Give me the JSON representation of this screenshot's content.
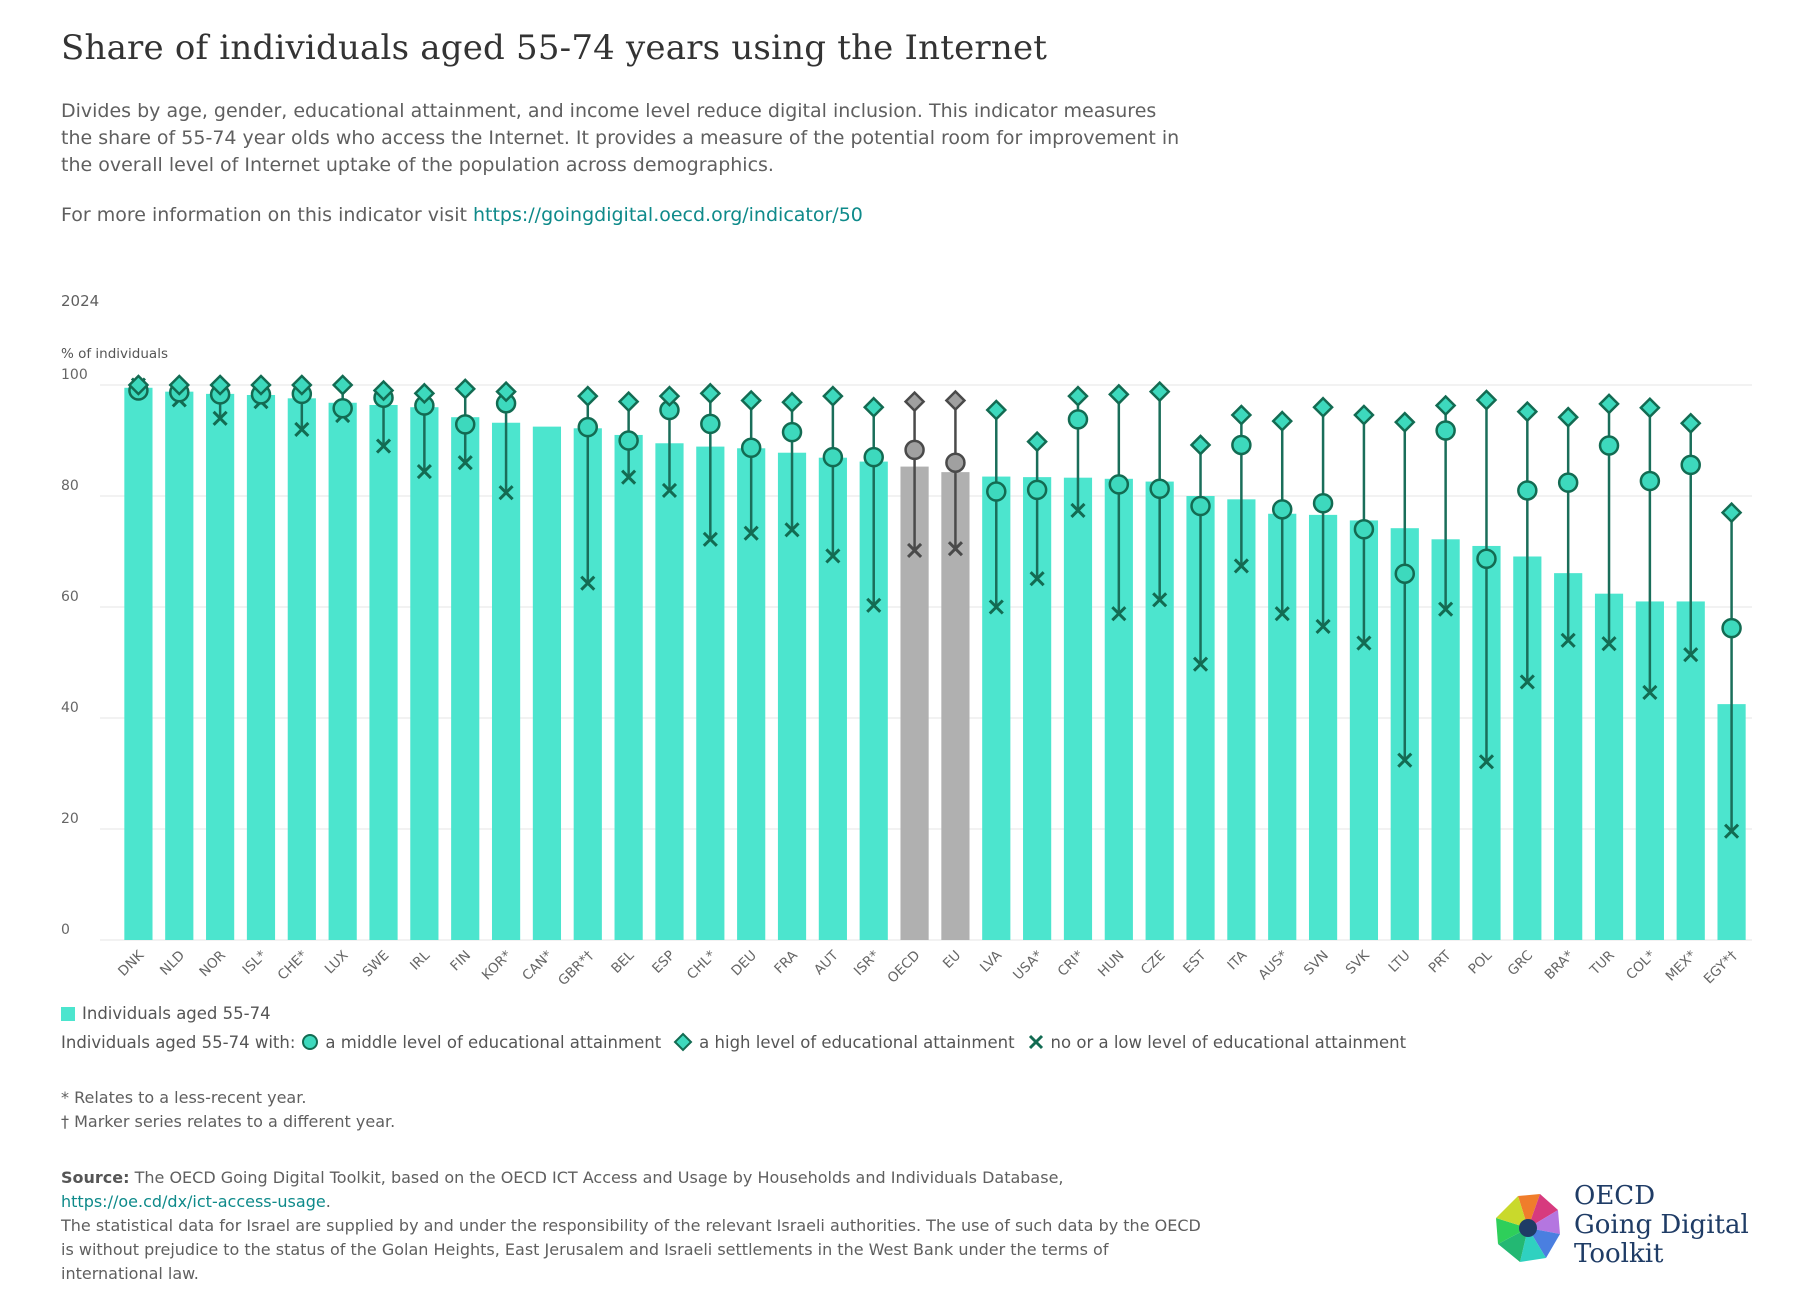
{
  "title": "Share of individuals aged 55-74 years using the Internet",
  "description": "Divides by age, gender, educational attainment, and income level reduce digital inclusion. This indicator measures the share of 55-74 year olds who access the Internet. It provides a measure of the potential room for improvement in the overall level of Internet uptake of the population across demographics.",
  "info_prefix": "For more information on this indicator visit ",
  "info_link": "https://goingdigital.oecd.org/indicator/50",
  "year": "2024",
  "legend": {
    "bar_label": "Individuals aged 55-74",
    "markers_prefix": "Individuals aged 55-74 with:",
    "middle_label": "a middle level of educational attainment",
    "high_label": "a high level of educational attainment",
    "low_label": "no or a low level of educational attainment"
  },
  "notes": {
    "star": "* Relates to a less-recent year.",
    "dagger": "† Marker series relates to a different year."
  },
  "source": {
    "label": "Source:",
    "text": " The OECD Going Digital Toolkit, based on the OECD ICT Access and Usage by Households and Individuals Database,",
    "link": "https://oe.cd/dx/ict-access-usage",
    "link_suffix": ".",
    "disclaimer": "The statistical data for Israel are supplied by and under the responsibility of the relevant Israeli authorities. The use of such data by the OECD is without prejudice to the status of the Golan Heights, East Jerusalem and Israeli settlements in the West Bank under the terms of international law."
  },
  "logo": {
    "line1": "OECD",
    "line2": "Going Digital",
    "line3": "Toolkit"
  },
  "colors": {
    "bar": "#4ce5ce",
    "bar_aggregate": "#b0b0b0",
    "marker_line": "#1a6e5a",
    "marker_fill": "#3dd9bd",
    "marker_stroke": "#136b52",
    "aggregate_marker_fill": "#a0a0a0",
    "aggregate_marker_stroke": "#4a4a4a",
    "grid": "#e6e6e6",
    "axis_text": "#666666"
  },
  "chart_data": {
    "type": "bar",
    "ylabel": "% of individuals",
    "ylim": [
      0,
      100
    ],
    "yticks": [
      0,
      20,
      40,
      60,
      80,
      100
    ],
    "categories": [
      "DNK",
      "NLD",
      "NOR",
      "ISL*",
      "CHE*",
      "LUX",
      "SWE",
      "IRL",
      "FIN",
      "KOR*",
      "CAN*",
      "GBR*†",
      "BEL",
      "ESP",
      "CHL*",
      "DEU",
      "FRA",
      "AUT",
      "ISR*",
      "OECD",
      "EU",
      "LVA",
      "USA*",
      "CRI*",
      "HUN",
      "CZE",
      "EST",
      "ITA",
      "AUS*",
      "SVN",
      "SVK",
      "LTU",
      "PRT",
      "POL",
      "GRC",
      "BRA*",
      "TUR",
      "COL*",
      "MEX*",
      "EGY*†"
    ],
    "aggregates": [
      "OECD",
      "EU"
    ],
    "series": [
      {
        "name": "Individuals aged 55-74",
        "kind": "bar",
        "values": [
          99.5,
          98.8,
          98.4,
          98.2,
          97.6,
          96.8,
          96.4,
          96.0,
          94.2,
          93.2,
          92.5,
          92.2,
          91.0,
          89.5,
          88.9,
          88.6,
          87.8,
          86.9,
          86.2,
          85.3,
          84.3,
          83.5,
          83.4,
          83.3,
          83.1,
          82.6,
          80.0,
          79.4,
          76.8,
          76.6,
          75.6,
          74.2,
          72.2,
          71.0,
          69.1,
          66.1,
          62.4,
          61.0,
          61.0,
          42.5
        ]
      },
      {
        "name": "a middle level of educational attainment",
        "kind": "circle",
        "values": [
          99.0,
          98.7,
          98.3,
          98.3,
          98.4,
          95.8,
          97.7,
          96.3,
          92.9,
          96.7,
          null,
          92.4,
          90.0,
          95.5,
          93.0,
          88.7,
          91.5,
          87.0,
          87.0,
          88.3,
          86.0,
          80.8,
          81.1,
          93.8,
          82.1,
          81.3,
          78.2,
          89.2,
          77.6,
          78.7,
          74.0,
          66.0,
          91.8,
          68.7,
          81.0,
          82.4,
          89.1,
          82.7,
          85.6,
          56.2
        ]
      },
      {
        "name": "a high level of educational attainment",
        "kind": "diamond",
        "values": [
          100.0,
          100.0,
          100.0,
          100.0,
          100.0,
          100.0,
          99.0,
          98.5,
          99.3,
          98.8,
          null,
          98.0,
          97.0,
          98.0,
          98.5,
          97.2,
          96.9,
          98.0,
          96.0,
          97.0,
          97.2,
          95.5,
          89.8,
          98.0,
          98.3,
          98.8,
          89.2,
          94.6,
          93.5,
          96.0,
          94.6,
          93.3,
          96.3,
          97.3,
          95.2,
          94.2,
          96.6,
          95.9,
          93.1,
          77.0
        ]
      },
      {
        "name": "no or a low level of educational attainment",
        "kind": "cross",
        "values": [
          100.0,
          97.3,
          94.0,
          97.0,
          92.0,
          94.5,
          89.0,
          84.4,
          86.0,
          80.6,
          null,
          64.3,
          83.4,
          81.0,
          72.2,
          73.3,
          73.9,
          69.2,
          60.3,
          70.2,
          70.5,
          60.0,
          65.1,
          77.4,
          58.8,
          61.3,
          49.7,
          67.4,
          58.8,
          56.5,
          53.5,
          32.4,
          59.6,
          32.1,
          46.5,
          54.0,
          53.4,
          44.6,
          51.4,
          19.6
        ]
      }
    ]
  }
}
